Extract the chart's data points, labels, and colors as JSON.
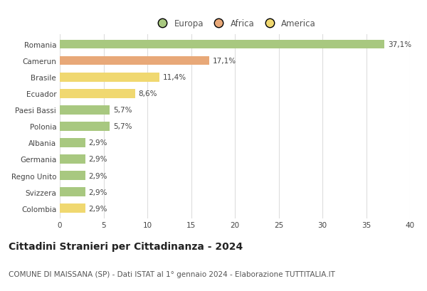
{
  "categories": [
    "Romania",
    "Camerun",
    "Brasile",
    "Ecuador",
    "Paesi Bassi",
    "Polonia",
    "Albania",
    "Germania",
    "Regno Unito",
    "Svizzera",
    "Colombia"
  ],
  "values": [
    37.1,
    17.1,
    11.4,
    8.6,
    5.7,
    5.7,
    2.9,
    2.9,
    2.9,
    2.9,
    2.9
  ],
  "labels": [
    "37,1%",
    "17,1%",
    "11,4%",
    "8,6%",
    "5,7%",
    "5,7%",
    "2,9%",
    "2,9%",
    "2,9%",
    "2,9%",
    "2,9%"
  ],
  "colors": [
    "#a8c880",
    "#e8a878",
    "#f0d870",
    "#f0d870",
    "#a8c880",
    "#a8c880",
    "#a8c880",
    "#a8c880",
    "#a8c880",
    "#a8c880",
    "#f0d870"
  ],
  "legend_labels": [
    "Europa",
    "Africa",
    "America"
  ],
  "legend_colors": [
    "#a8c880",
    "#e8a878",
    "#f0d870"
  ],
  "title": "Cittadini Stranieri per Cittadinanza - 2024",
  "subtitle": "COMUNE DI MAISSANA (SP) - Dati ISTAT al 1° gennaio 2024 - Elaborazione TUTTITALIA.IT",
  "xlim": [
    0,
    40
  ],
  "xticks": [
    0,
    5,
    10,
    15,
    20,
    25,
    30,
    35,
    40
  ],
  "background_color": "#ffffff",
  "grid_color": "#dddddd",
  "bar_height": 0.55,
  "title_fontsize": 10,
  "subtitle_fontsize": 7.5,
  "label_fontsize": 7.5,
  "tick_fontsize": 7.5,
  "legend_fontsize": 8.5
}
